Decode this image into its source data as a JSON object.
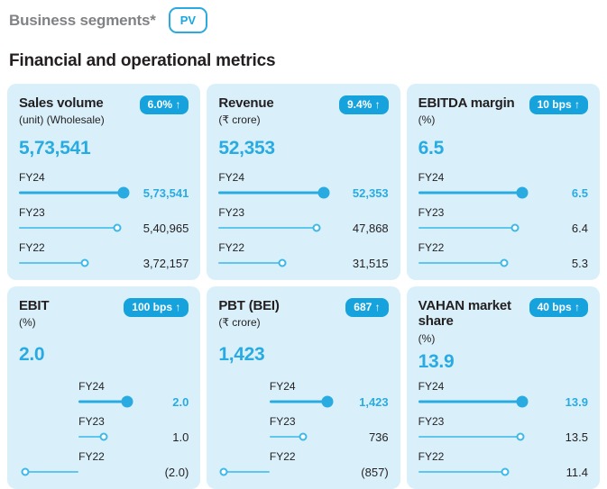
{
  "header": {
    "section_label": "Business segments*",
    "segment_button": "PV",
    "title": "Financial and operational metrics"
  },
  "colors": {
    "card_background": "#d9f0fb",
    "badge_background": "#16a3dd",
    "accent_cyan": "#29abe2",
    "light_line": "#5fc6ee",
    "dark_text": "#231f20",
    "gray_text": "#808285"
  },
  "cards": [
    {
      "title": "Sales volume",
      "subtitle": "(unit) (Wholesale)",
      "badge": "6.0% ↑",
      "headline": "5,73,541",
      "rows": [
        {
          "label": "FY24",
          "value": "5,73,541",
          "label_style": "left:0%",
          "line_style": "left:0%;width:96%",
          "marker_style": "left:96%"
        },
        {
          "label": "FY23",
          "value": "5,40,965",
          "label_style": "left:0%",
          "line_style": "left:0%;width:91%",
          "marker_style": "left:91%"
        },
        {
          "label": "FY22",
          "value": "3,72,157",
          "label_style": "left:0%",
          "line_style": "left:0%;width:61%",
          "marker_style": "left:61%"
        }
      ]
    },
    {
      "title": "Revenue",
      "subtitle": "(₹ crore)",
      "badge": "9.4% ↑",
      "headline": "52,353",
      "rows": [
        {
          "label": "FY24",
          "value": "52,353",
          "label_style": "left:0%",
          "line_style": "left:0%;width:97%",
          "marker_style": "left:97%"
        },
        {
          "label": "FY23",
          "value": "47,868",
          "label_style": "left:0%",
          "line_style": "left:0%;width:90%",
          "marker_style": "left:90%"
        },
        {
          "label": "FY22",
          "value": "31,515",
          "label_style": "left:0%",
          "line_style": "left:0%;width:59%",
          "marker_style": "left:59%"
        }
      ]
    },
    {
      "title": "EBITDA margin",
      "subtitle": "(%)",
      "badge": "10 bps ↑",
      "headline": "6.5",
      "rows": [
        {
          "label": "FY24",
          "value": "6.5",
          "label_style": "left:0%",
          "line_style": "left:0%;width:96%",
          "marker_style": "left:96%"
        },
        {
          "label": "FY23",
          "value": "6.4",
          "label_style": "left:0%",
          "line_style": "left:0%;width:89%",
          "marker_style": "left:89%"
        },
        {
          "label": "FY22",
          "value": "5.3",
          "label_style": "left:0%",
          "line_style": "left:0%;width:79%",
          "marker_style": "left:79%"
        }
      ]
    },
    {
      "title": "EBIT",
      "subtitle": "(%)",
      "badge": "100 bps ↑",
      "headline": "2.0",
      "rows": [
        {
          "label": "FY24",
          "value": "2.0",
          "label_style": "left:55%",
          "line_style": "left:55%;width:45%",
          "marker_style": "left:100%"
        },
        {
          "label": "FY23",
          "value": "1.0",
          "label_style": "left:55%",
          "line_style": "left:55%;width:23%",
          "marker_style": "left:78%"
        },
        {
          "label": "FY22",
          "value": "(2.0)",
          "label_style": "left:55%",
          "line_style": "left:6%;width:49%",
          "marker_style": "left:6%"
        }
      ]
    },
    {
      "title": "PBT (BEI)",
      "subtitle": "(₹ crore)",
      "badge": "687 ↑",
      "headline": "1,423",
      "rows": [
        {
          "label": "FY24",
          "value": "1,423",
          "label_style": "left:47%",
          "line_style": "left:47%;width:53%",
          "marker_style": "left:100%"
        },
        {
          "label": "FY23",
          "value": "736",
          "label_style": "left:47%",
          "line_style": "left:47%;width:31%",
          "marker_style": "left:78%"
        },
        {
          "label": "FY22",
          "value": "(857)",
          "label_style": "left:47%",
          "line_style": "left:5%;width:42%",
          "marker_style": "left:5%"
        }
      ]
    },
    {
      "title": "VAHAN market share",
      "subtitle": "(%)",
      "badge": "40 bps ↑",
      "headline": "13.9",
      "rows": [
        {
          "label": "FY24",
          "value": "13.9",
          "label_style": "left:0%",
          "line_style": "left:0%;width:96%",
          "marker_style": "left:96%"
        },
        {
          "label": "FY23",
          "value": "13.5",
          "label_style": "left:0%",
          "line_style": "left:0%;width:94%",
          "marker_style": "left:94%"
        },
        {
          "label": "FY22",
          "value": "11.4",
          "label_style": "left:0%",
          "line_style": "left:0%;width:80%",
          "marker_style": "left:80%"
        }
      ]
    }
  ],
  "chart_data": [
    {
      "type": "bar",
      "title": "Sales volume",
      "xlabel": "(unit) (Wholesale)",
      "change_badge": "6.0% ↑",
      "categories": [
        "FY24",
        "FY23",
        "FY22"
      ],
      "values": [
        573541,
        540965,
        372157
      ],
      "headline_value": 573541
    },
    {
      "type": "bar",
      "title": "Revenue",
      "xlabel": "₹ crore",
      "change_badge": "9.4% ↑",
      "categories": [
        "FY24",
        "FY23",
        "FY22"
      ],
      "values": [
        52353,
        47868,
        31515
      ],
      "headline_value": 52353
    },
    {
      "type": "bar",
      "title": "EBITDA margin",
      "xlabel": "%",
      "change_badge": "10 bps ↑",
      "categories": [
        "FY24",
        "FY23",
        "FY22"
      ],
      "values": [
        6.5,
        6.4,
        5.3
      ],
      "headline_value": 6.5
    },
    {
      "type": "bar",
      "title": "EBIT",
      "xlabel": "%",
      "change_badge": "100 bps ↑",
      "categories": [
        "FY24",
        "FY23",
        "FY22"
      ],
      "values": [
        2.0,
        1.0,
        -2.0
      ],
      "headline_value": 2.0
    },
    {
      "type": "bar",
      "title": "PBT (BEI)",
      "xlabel": "₹ crore",
      "change_badge": "687 ↑",
      "categories": [
        "FY24",
        "FY23",
        "FY22"
      ],
      "values": [
        1423,
        736,
        -857
      ],
      "headline_value": 1423
    },
    {
      "type": "bar",
      "title": "VAHAN market share",
      "xlabel": "%",
      "change_badge": "40 bps ↑",
      "categories": [
        "FY24",
        "FY23",
        "FY22"
      ],
      "values": [
        13.9,
        13.5,
        11.4
      ],
      "headline_value": 13.9
    }
  ]
}
